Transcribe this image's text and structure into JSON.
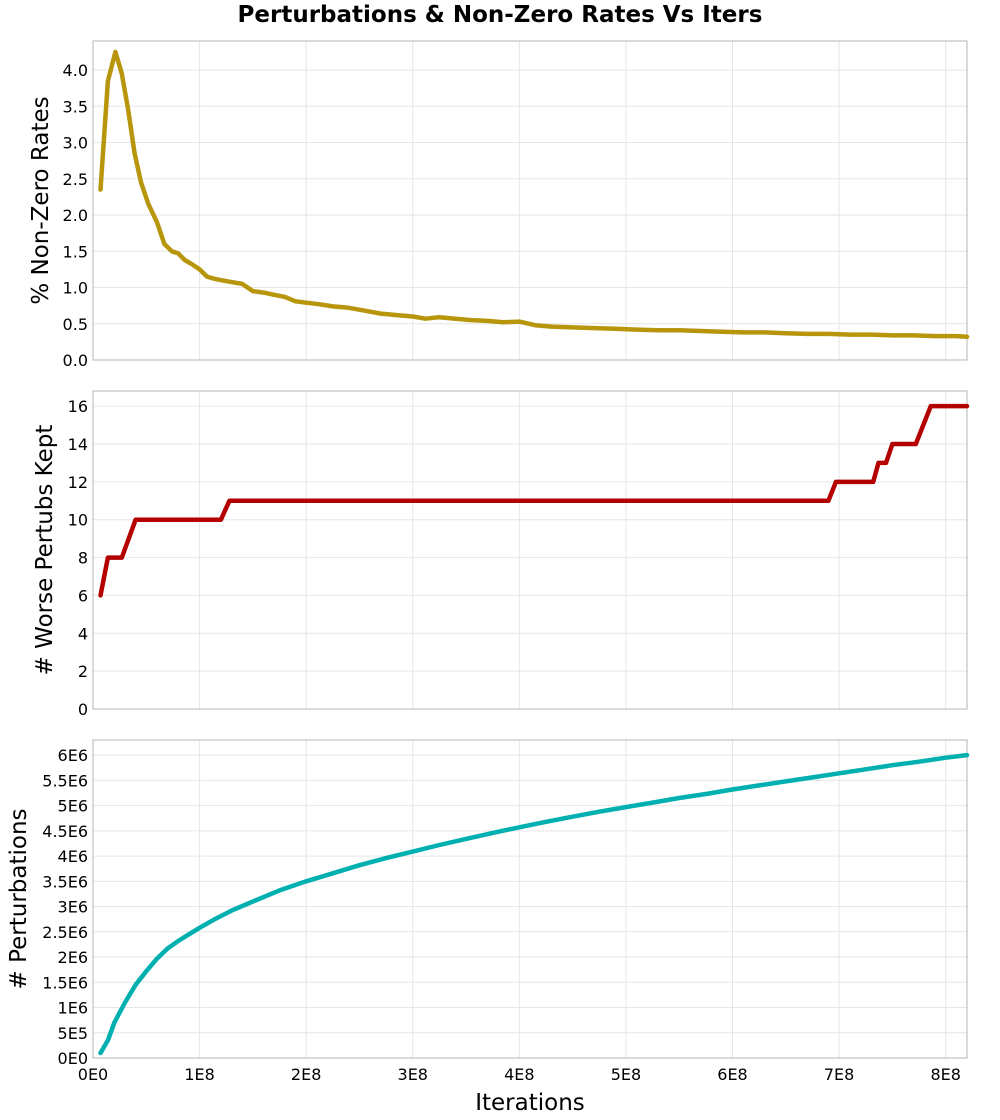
{
  "title": "Perturbations & Non-Zero Rates Vs Iters",
  "x_axis": {
    "label": "Iterations",
    "range": [
      0,
      820000000
    ],
    "ticks": [
      0,
      100000000,
      200000000,
      300000000,
      400000000,
      500000000,
      600000000,
      700000000,
      800000000
    ],
    "tick_labels": [
      "0E0",
      "1E8",
      "2E8",
      "3E8",
      "4E8",
      "5E8",
      "6E8",
      "7E8",
      "8E8"
    ]
  },
  "chart_data": [
    {
      "type": "line",
      "title": "Perturbations & Non-Zero Rates Vs Iters",
      "xlabel": "",
      "ylabel": "% Non-Zero Rates",
      "xlim": [
        0,
        820000000
      ],
      "ylim": [
        0,
        4.4
      ],
      "yticks": [
        0,
        0.5,
        1.0,
        1.5,
        2.0,
        2.5,
        3.0,
        3.5,
        4.0
      ],
      "ytick_labels": [
        "0.0",
        "0.5",
        "1.0",
        "1.5",
        "2.0",
        "2.5",
        "3.0",
        "3.5",
        "4.0"
      ],
      "grid": true,
      "color": "#b8960c",
      "series": [
        {
          "x": [
            7000000,
            14000000,
            21000000,
            27000000,
            33000000,
            39000000,
            45000000,
            52000000,
            60000000,
            67000000,
            74000000,
            80000000,
            86000000,
            93000000,
            100000000,
            107000000,
            114000000,
            121000000,
            128000000,
            140000000,
            150000000,
            160000000,
            170000000,
            180000000,
            190000000,
            200000000,
            212000000,
            225000000,
            240000000,
            255000000,
            270000000,
            285000000,
            300000000,
            312000000,
            325000000,
            340000000,
            355000000,
            370000000,
            385000000,
            400000000,
            415000000,
            430000000,
            450000000,
            470000000,
            490000000,
            510000000,
            530000000,
            550000000,
            570000000,
            590000000,
            610000000,
            630000000,
            650000000,
            670000000,
            690000000,
            710000000,
            730000000,
            750000000,
            770000000,
            790000000,
            810000000,
            820000000
          ],
          "y": [
            2.35,
            3.85,
            4.25,
            3.95,
            3.45,
            2.85,
            2.45,
            2.15,
            1.9,
            1.6,
            1.5,
            1.47,
            1.38,
            1.32,
            1.25,
            1.15,
            1.12,
            1.1,
            1.08,
            1.05,
            0.95,
            0.93,
            0.9,
            0.87,
            0.81,
            0.79,
            0.77,
            0.74,
            0.72,
            0.68,
            0.64,
            0.62,
            0.6,
            0.57,
            0.59,
            0.57,
            0.55,
            0.54,
            0.52,
            0.53,
            0.48,
            0.46,
            0.45,
            0.44,
            0.43,
            0.42,
            0.41,
            0.41,
            0.4,
            0.39,
            0.38,
            0.38,
            0.37,
            0.36,
            0.36,
            0.35,
            0.35,
            0.34,
            0.34,
            0.33,
            0.33,
            0.32
          ]
        }
      ]
    },
    {
      "type": "line",
      "xlabel": "",
      "ylabel": "# Worse Pertubs Kept",
      "xlim": [
        0,
        820000000
      ],
      "ylim": [
        0,
        16.8
      ],
      "yticks": [
        0,
        2,
        4,
        6,
        8,
        10,
        12,
        14,
        16
      ],
      "ytick_labels": [
        "0",
        "2",
        "4",
        "6",
        "8",
        "10",
        "12",
        "14",
        "16"
      ],
      "grid": true,
      "color": "#b50000",
      "series": [
        {
          "x": [
            7000000,
            14000000,
            27000000,
            40000000,
            100000000,
            120000000,
            128000000,
            690000000,
            697000000,
            732000000,
            737000000,
            744000000,
            750000000,
            772000000,
            786000000,
            820000000
          ],
          "y": [
            6,
            8,
            8,
            10,
            10,
            10,
            11,
            11,
            12,
            12,
            13,
            13,
            14,
            14,
            16,
            16
          ]
        }
      ]
    },
    {
      "type": "line",
      "xlabel": "Iterations",
      "ylabel": "# Perturbations",
      "xlim": [
        0,
        820000000
      ],
      "ylim": [
        0,
        6300000
      ],
      "yticks": [
        0,
        500000,
        1000000,
        1500000,
        2000000,
        2500000,
        3000000,
        3500000,
        4000000,
        4500000,
        5000000,
        5500000,
        6000000
      ],
      "ytick_labels": [
        "0E0",
        "5E5",
        "1E6",
        "1.5E6",
        "2E6",
        "2.5E6",
        "3E6",
        "3.5E6",
        "4E6",
        "4.5E6",
        "5E6",
        "5.5E6",
        "6E6"
      ],
      "grid": true,
      "color": "#00b0b0",
      "series": [
        {
          "x": [
            7000000,
            14000000,
            20000000,
            30000000,
            40000000,
            50000000,
            60000000,
            70000000,
            80000000,
            90000000,
            100000000,
            115000000,
            130000000,
            150000000,
            175000000,
            200000000,
            225000000,
            250000000,
            275000000,
            300000000,
            325000000,
            350000000,
            375000000,
            400000000,
            425000000,
            450000000,
            475000000,
            500000000,
            525000000,
            550000000,
            575000000,
            600000000,
            625000000,
            650000000,
            675000000,
            700000000,
            725000000,
            750000000,
            775000000,
            800000000,
            820000000
          ],
          "y": [
            100000,
            350000,
            700000,
            1100000,
            1450000,
            1720000,
            1970000,
            2170000,
            2320000,
            2450000,
            2580000,
            2760000,
            2920000,
            3100000,
            3320000,
            3500000,
            3660000,
            3820000,
            3960000,
            4090000,
            4220000,
            4340000,
            4460000,
            4570000,
            4680000,
            4780000,
            4880000,
            4970000,
            5060000,
            5150000,
            5230000,
            5320000,
            5400000,
            5480000,
            5560000,
            5640000,
            5720000,
            5800000,
            5870000,
            5950000,
            6000000
          ]
        }
      ]
    }
  ]
}
